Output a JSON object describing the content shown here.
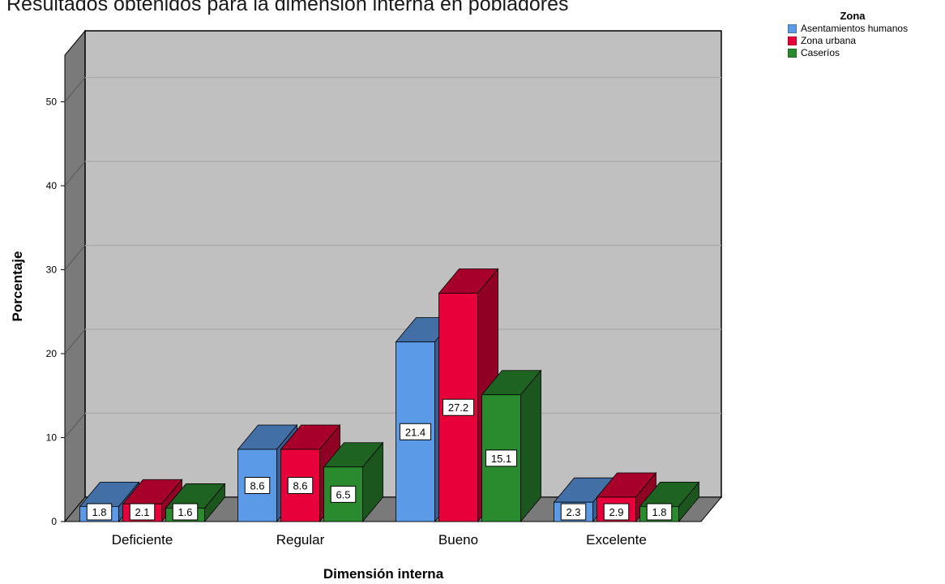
{
  "chart_data": {
    "type": "bar",
    "title": "Resultados obtenidos para la dimensión interna en pobladores",
    "xlabel": "Dimensión interna",
    "ylabel": "Porcentaje",
    "categories": [
      "Deficiente",
      "Regular",
      "Bueno",
      "Excelente"
    ],
    "series": [
      {
        "name": "Asentamientos humanos",
        "values": [
          1.8,
          8.6,
          21.4,
          2.3
        ],
        "color": "#5b9ae6"
      },
      {
        "name": "Zona urbana",
        "values": [
          2.1,
          8.6,
          27.2,
          2.9
        ],
        "color": "#e8003a"
      },
      {
        "name": "Caseríos",
        "values": [
          1.6,
          6.5,
          15.1,
          1.8
        ],
        "color": "#2a8a2e"
      }
    ],
    "ylim": [
      0,
      55
    ],
    "yticks": [
      0,
      10,
      20,
      30,
      40,
      50
    ],
    "grid": true,
    "legend_title": "Zona",
    "legend_position": "top-right",
    "style": "3d"
  }
}
